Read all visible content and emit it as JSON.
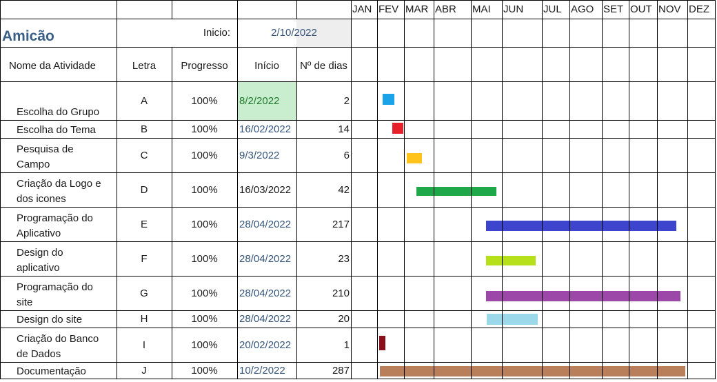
{
  "months": [
    "JAN",
    "FEV",
    "MAR",
    "ABR",
    "MAI",
    "JUN",
    "JUL",
    "AGO",
    "SET",
    "OUT",
    "NOV",
    "DEZ"
  ],
  "project": {
    "name": "Amicão",
    "start_label": "Inicio:",
    "start_date": "2/10/2022"
  },
  "headers": {
    "activity": "Nome da Atividade",
    "letter": "Letra",
    "progress": "Progresso",
    "start": "Início",
    "days": "Nº de dias"
  },
  "tasks": [
    {
      "name": "Escolha do Grupo",
      "letter": "A",
      "progress": "100%",
      "start": "8/2/2022",
      "days": "2",
      "color": "#1aa3e8"
    },
    {
      "name": "Escolha do Tema",
      "letter": "B",
      "progress": "100%",
      "start": "16/02/2022",
      "days": "14",
      "color": "#e8202a"
    },
    {
      "name": "Pesquisa de Campo",
      "letter": "C",
      "progress": "100%",
      "start": "9/3/2022",
      "days": "6",
      "color": "#ffc31a"
    },
    {
      "name": "Criação da Logo e dos icones",
      "letter": "D",
      "progress": "100%",
      "start": "16/03/2022",
      "days": "42",
      "color": "#1fa84a"
    },
    {
      "name": "Programação do Aplicativo",
      "letter": "E",
      "progress": "100%",
      "start": "28/04/2022",
      "days": "217",
      "color": "#3d45cc"
    },
    {
      "name": "Design do aplicativo",
      "letter": "F",
      "progress": "100%",
      "start": "28/04/2022",
      "days": "23",
      "color": "#b5e01a"
    },
    {
      "name": "Programação do site",
      "letter": "G",
      "progress": "100%",
      "start": "28/04/2022",
      "days": "210",
      "color": "#9b48a8"
    },
    {
      "name": "Design do site",
      "letter": "H",
      "progress": "100%",
      "start": "28/04/2022",
      "days": "20",
      "color": "#9ad8ea"
    },
    {
      "name": "Criação do Banco de Dados",
      "letter": "I",
      "progress": "100%",
      "start": "20/02/2022",
      "days": "1",
      "color": "#8a0f1a"
    },
    {
      "name": "Documentação",
      "letter": "J",
      "progress": "100%",
      "start": "10/2/2022",
      "days": "287",
      "color": "#b87f5a"
    }
  ],
  "colors": {
    "start_cell_fill": "#c9eecf",
    "project_start_fill": "#eeeeee",
    "title_color": "#3a5f87"
  }
}
